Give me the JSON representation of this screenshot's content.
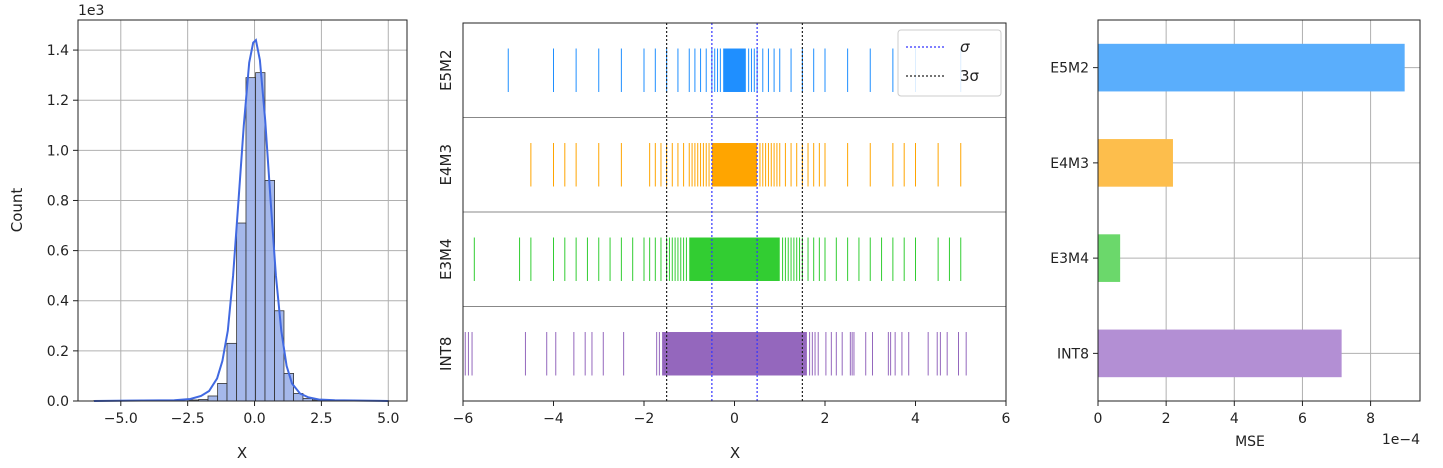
{
  "chart_data": [
    {
      "type": "bar",
      "subtype": "histogram",
      "xlabel": "X",
      "ylabel": "Count",
      "y_offset_text": "1e3",
      "xlim": [
        -6.6,
        5.7
      ],
      "ylim": [
        0,
        1.52
      ],
      "x_ticks": [
        -5.0,
        -2.5,
        0.0,
        2.5,
        5.0
      ],
      "x_tick_labels": [
        "−5.0",
        "−2.5",
        "0.0",
        "2.5",
        "5.0"
      ],
      "y_ticks": [
        0.0,
        0.2,
        0.4,
        0.6,
        0.8,
        1.0,
        1.2,
        1.4
      ],
      "y_tick_labels": [
        "0.0",
        "0.2",
        "0.4",
        "0.6",
        "0.8",
        "1.0",
        "1.2",
        "1.4"
      ],
      "grid": true,
      "bar_color": "#8ea6e6",
      "bin_edges": [
        -6.0,
        -5.64,
        -5.29,
        -4.93,
        -4.58,
        -4.22,
        -3.87,
        -3.51,
        -3.16,
        -2.8,
        -2.45,
        -2.09,
        -1.74,
        -1.38,
        -1.03,
        -0.67,
        -0.32,
        0.04,
        0.39,
        0.75,
        1.1,
        1.46,
        1.81,
        2.17,
        2.52,
        2.88,
        3.23,
        3.59,
        3.94,
        4.3,
        4.65,
        5.0
      ],
      "counts_x1e3": [
        0.002,
        0.0,
        0.0,
        0.002,
        0.0,
        0.002,
        0.002,
        0.0,
        0.002,
        0.0,
        0.004,
        0.006,
        0.02,
        0.07,
        0.23,
        0.71,
        1.29,
        1.31,
        0.88,
        0.36,
        0.11,
        0.03,
        0.01,
        0.004,
        0.002,
        0.0,
        0.002,
        0.0,
        0.002,
        0.0,
        0.002
      ],
      "kde_color": "#4169e1",
      "kde_x": [
        -6,
        -3,
        -2.4,
        -2.0,
        -1.7,
        -1.4,
        -1.2,
        -1.0,
        -0.8,
        -0.6,
        -0.4,
        -0.2,
        -0.05,
        0.05,
        0.2,
        0.4,
        0.6,
        0.8,
        1.0,
        1.2,
        1.4,
        1.7,
        2.0,
        2.4,
        3,
        5
      ],
      "kde_y_x1e3": [
        0.0,
        0.003,
        0.008,
        0.02,
        0.04,
        0.09,
        0.16,
        0.28,
        0.5,
        0.8,
        1.1,
        1.35,
        1.43,
        1.44,
        1.36,
        1.12,
        0.8,
        0.5,
        0.28,
        0.14,
        0.07,
        0.03,
        0.015,
        0.006,
        0.003,
        0.0
      ]
    },
    {
      "type": "scatter",
      "subtype": "rug",
      "xlabel": "X",
      "xlim": [
        -6,
        6
      ],
      "x_ticks": [
        -6,
        -4,
        -2,
        0,
        2,
        4,
        6
      ],
      "x_tick_labels": [
        "−6",
        "−4",
        "−2",
        "0",
        "2",
        "4",
        "6"
      ],
      "categories": [
        "E5M2",
        "E4M3",
        "E3M4",
        "INT8"
      ],
      "sigma_lines": [
        -0.5,
        0.5
      ],
      "three_sigma_lines": [
        -1.5,
        1.5
      ],
      "legend": {
        "position": "top-right",
        "entries": [
          {
            "label": "σ",
            "color": "#3333ff",
            "style": "dotted"
          },
          {
            "label": "3σ",
            "color": "#222222",
            "style": "dotted"
          }
        ]
      },
      "series": [
        {
          "name": "E5M2",
          "color": "#1f8fff",
          "dense_range": [
            -0.25,
            0.25
          ],
          "values": [
            -5.0,
            -4.0,
            -3.5,
            -3.0,
            -2.5,
            -2.0,
            -1.75,
            -1.5,
            -1.25,
            -1.0,
            -0.875,
            -0.75,
            -0.625,
            -0.5,
            -0.4375,
            -0.375,
            -0.3125,
            0.3125,
            0.375,
            0.4375,
            0.5,
            0.625,
            0.75,
            0.875,
            1.0,
            1.25,
            1.5,
            1.75,
            2.0,
            2.5,
            3.0,
            3.5,
            4.0,
            5.0
          ]
        },
        {
          "name": "E4M3",
          "color": "#ffa500",
          "dense_range": [
            -0.5,
            0.5
          ],
          "values": [
            -4.5,
            -4.0,
            -3.75,
            -3.5,
            -3.0,
            -2.5,
            -1.875,
            -1.75,
            -1.625,
            -1.5,
            -1.375,
            -1.25,
            -1.125,
            -1.0,
            -0.9375,
            -0.875,
            -0.8125,
            -0.75,
            -0.6875,
            -0.625,
            -0.5625,
            0.5625,
            0.625,
            0.6875,
            0.75,
            0.8125,
            0.875,
            0.9375,
            1.0,
            1.125,
            1.25,
            1.375,
            1.5,
            1.625,
            1.75,
            1.875,
            2.0,
            2.5,
            3.0,
            3.5,
            3.75,
            4.0,
            4.5,
            5.0
          ]
        },
        {
          "name": "E3M4",
          "color": "#32cd32",
          "dense_range": [
            -1.0,
            1.0
          ],
          "values": [
            -5.75,
            -4.75,
            -4.5,
            -4.0,
            -3.75,
            -3.5,
            -3.25,
            -3.0,
            -2.75,
            -2.5,
            -2.25,
            -2.0,
            -1.875,
            -1.75,
            -1.625,
            -1.5,
            -1.4375,
            -1.375,
            -1.3125,
            -1.25,
            -1.1875,
            -1.125,
            -1.0625,
            1.0625,
            1.125,
            1.1875,
            1.25,
            1.3125,
            1.375,
            1.4375,
            1.5,
            1.625,
            1.75,
            1.875,
            2.0,
            2.25,
            2.5,
            2.75,
            3.0,
            3.25,
            3.5,
            3.75,
            4.0,
            4.5,
            4.75,
            5.0
          ]
        },
        {
          "name": "INT8",
          "color": "#9467bd",
          "dense_range": [
            -1.6,
            1.6
          ],
          "values": [
            -5.95,
            -5.88,
            -5.8,
            -4.62,
            -4.15,
            -3.95,
            -3.55,
            -3.3,
            -3.15,
            -2.9,
            -2.45,
            -1.72,
            -1.66,
            1.66,
            1.72,
            1.78,
            1.85,
            2.02,
            2.14,
            2.25,
            2.38,
            2.56,
            2.6,
            2.64,
            2.9,
            3.05,
            3.4,
            3.45,
            3.55,
            3.7,
            3.85,
            4.28,
            4.48,
            4.55,
            4.7,
            4.95,
            5.12
          ]
        }
      ]
    },
    {
      "type": "bar",
      "orientation": "horizontal",
      "categories": [
        "E5M2",
        "E4M3",
        "E3M4",
        "INT8"
      ],
      "values": [
        9.0,
        2.2,
        0.65,
        7.15
      ],
      "colors": [
        "#5aaefc",
        "#fdbe4c",
        "#6bd86b",
        "#b38fd4"
      ],
      "xlabel": "MSE",
      "x_offset_text": "1e−4",
      "xlim": [
        0,
        9.45
      ],
      "x_ticks": [
        0,
        2,
        4,
        6,
        8
      ],
      "x_tick_labels": [
        "0",
        "2",
        "4",
        "6",
        "8"
      ],
      "grid": true
    }
  ]
}
